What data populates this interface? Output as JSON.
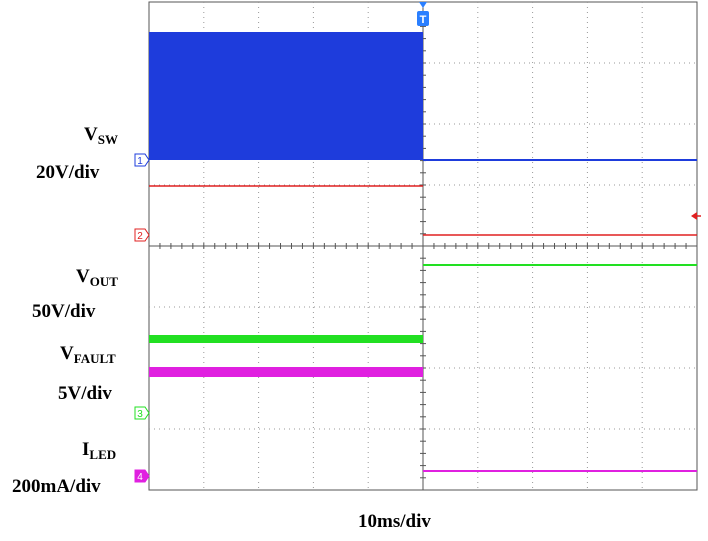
{
  "chart_data": {
    "type": "line",
    "title": "",
    "time_scale": "10ms/div",
    "grid": {
      "h_divisions": 10,
      "v_divisions": 8,
      "visible": true
    },
    "trigger_marker": "T",
    "colors": {
      "ch1": "#1e3cdc",
      "ch2": "#e02020",
      "ch3": "#22e022",
      "ch4": "#e020e0",
      "trigger": "#2a7fff"
    },
    "channels": [
      {
        "id": "ch1",
        "marker": "1",
        "name": "V",
        "sub": "SW",
        "scale": "20V/div",
        "description": "switching waveform, ~5 div peak before fault, collapses to reference after fault",
        "before_fault_div": [
          0,
          4.9
        ],
        "after_fault_div": 0
      },
      {
        "id": "ch2",
        "marker": "2",
        "name": "",
        "sub": "",
        "scale": "",
        "before_fault_div": 1.9,
        "after_fault_div": 0.05
      },
      {
        "id": "ch3",
        "marker": "3",
        "name": "V",
        "sub": "OUT",
        "scale": "50V/div",
        "before_fault_div": 2.6,
        "after_fault_div": 5.5
      },
      {
        "id": "ch4",
        "marker": "4",
        "name": "V",
        "sub": "FAULT",
        "scale": "5V/div",
        "before_fault_div": 3.9,
        "after_fault_div": 0.2
      },
      {
        "id": "ch5",
        "marker": "",
        "name": "I",
        "sub": "LED",
        "scale": "200mA/div"
      }
    ],
    "fault_time_div": 5
  }
}
